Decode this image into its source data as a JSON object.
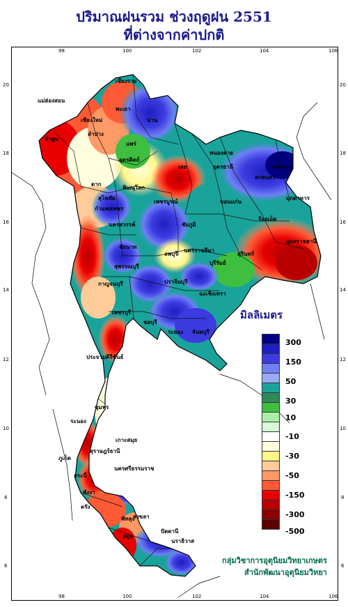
{
  "title_line1": "ปริมาณฝนรวม ช่วงฤดูฝน 2551",
  "title_line2": "ที่ต่างจากค่าปกติ",
  "axis": {
    "x_ticks": [
      "98",
      "100",
      "102",
      "104",
      "106"
    ],
    "y_ticks": [
      "20",
      "18",
      "16",
      "14",
      "12",
      "10",
      "8",
      "6"
    ]
  },
  "legend": {
    "title": "มิลลิเมตร",
    "labels": [
      "300",
      "150",
      "50",
      "30",
      "10",
      "-10",
      "-30",
      "-50",
      "-150",
      "-300",
      "-500"
    ],
    "colors": [
      "#000080",
      "#1f1fbf",
      "#3b3be0",
      "#6f7ff5",
      "#9aaaf7",
      "#1aa39b",
      "#2e8b57",
      "#3fbf3f",
      "#a8f0a8",
      "#d8f8d8",
      "#ffffff",
      "#ffffe0",
      "#fff68a",
      "#ffcc99",
      "#ff9966",
      "#ff5a36",
      "#e80000",
      "#b80000",
      "#8b0000",
      "#5a0000"
    ]
  },
  "places": [
    "เชียงราย",
    "แม่ฮ่องสอน",
    "พะเยา",
    "น่าน",
    "เชียงใหม่",
    "ลำพูน",
    "ลำปาง",
    "แพร่",
    "ตาก",
    "อุตรดิตถ์",
    "เลย",
    "หนองคาย",
    "อุดรธานี",
    "นครพนม",
    "สกลนคร",
    "มุกดาหาร",
    "ขอนแก่น",
    "พิษณุโลก",
    "สุโขทัย",
    "กำแพงเพชร",
    "เพชรบูรณ์",
    "ชัยภูมิ",
    "นครสวรรค์",
    "ร้อยเอ็ด",
    "อุบลราชธานี",
    "สุรินทร์",
    "ลพบุรี",
    "นครราชสีมา",
    "บุรีรัมย์",
    "ชัยนาท",
    "สุพรรณบุรี",
    "กาญจนบุรี",
    "ปราจีนบุรี",
    "ฉะเชิงเทรา",
    "ชลบุรี",
    "ระยอง",
    "จันทบุรี",
    "เพชรบุรี",
    "ประจวบคีรีขันธ์",
    "ชุมพร",
    "ระนอง",
    "สุราษฎร์ธานี",
    "นครศรีธรรมราช",
    "ภูเก็ต",
    "กระบี่",
    "พังงา",
    "ตรัง",
    "พัทลุง",
    "สงขลา",
    "สตูล",
    "ปัตตานี",
    "นราธิวาส",
    "เกาะสมุย"
  ],
  "credit_line1": "กลุ่มวิชาการอุตุนิยมวิทยาเกษตร",
  "credit_line2": "สำนักพัฒนาอุตุนิยมวิทยา"
}
